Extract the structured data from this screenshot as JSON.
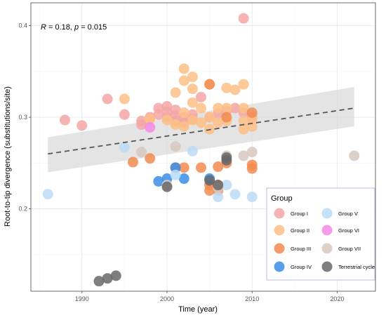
{
  "chart_data": {
    "type": "scatter",
    "xlabel": "Time (year)",
    "ylabel": "Root-to-tip divergence (substitutions/site)",
    "xlim": [
      1984,
      2024.5
    ],
    "ylim": [
      0.11,
      0.425
    ],
    "x_ticks": [
      1990,
      2000,
      2010,
      2020
    ],
    "y_ticks": [
      0.2,
      0.3,
      0.4
    ],
    "x_tick_labels": [
      "1990",
      "2000",
      "2010",
      "2020"
    ],
    "y_tick_labels": [
      "0.2",
      "0.3",
      "0.4"
    ],
    "grid": true,
    "annotation": "R = 0.18, p = 0.015",
    "annotation_parts": {
      "r_symbol": "R",
      "r_value": " = 0.18, ",
      "p_symbol": "p",
      "p_value": " = 0.015"
    },
    "legend": {
      "title": "Group",
      "placement": "bottom-right"
    },
    "regression": {
      "style": "dashed",
      "color": "#555555",
      "line": [
        [
          1986,
          0.26
        ],
        [
          2022,
          0.31
        ]
      ],
      "ci_band": {
        "x": [
          1986,
          2022
        ],
        "lower": [
          0.24,
          0.29
        ],
        "upper": [
          0.278,
          0.333
        ]
      },
      "band_color": "#d9d9d9"
    },
    "series": [
      {
        "name": "Group I",
        "color": "#f4a6a6",
        "points": [
          [
            1988,
            0.297
          ],
          [
            1990,
            0.291
          ],
          [
            1993,
            0.32
          ],
          [
            1995,
            0.303
          ],
          [
            1997,
            0.292
          ],
          [
            1997,
            0.296
          ],
          [
            1998,
            0.3
          ],
          [
            1999,
            0.31
          ],
          [
            1999,
            0.303
          ],
          [
            2000,
            0.312
          ],
          [
            2000,
            0.306
          ],
          [
            2000,
            0.3
          ],
          [
            2001,
            0.308
          ],
          [
            2001,
            0.302
          ],
          [
            2001,
            0.296
          ],
          [
            2002,
            0.3
          ],
          [
            2002,
            0.294
          ],
          [
            2003,
            0.303
          ],
          [
            2003,
            0.298
          ],
          [
            2004,
            0.322
          ],
          [
            2005,
            0.3
          ],
          [
            2006,
            0.304
          ],
          [
            2007,
            0.307
          ],
          [
            2008,
            0.31
          ],
          [
            2009,
            0.408
          ],
          [
            2009,
            0.305
          ],
          [
            2010,
            0.3
          ]
        ]
      },
      {
        "name": "Group II",
        "color": "#fdbf86",
        "points": [
          [
            1995,
            0.32
          ],
          [
            1998,
            0.298
          ],
          [
            2000,
            0.297
          ],
          [
            2001,
            0.327
          ],
          [
            2001,
            0.292
          ],
          [
            2002,
            0.353
          ],
          [
            2002,
            0.34
          ],
          [
            2002,
            0.305
          ],
          [
            2002,
            0.29
          ],
          [
            2003,
            0.344
          ],
          [
            2003,
            0.331
          ],
          [
            2003,
            0.316
          ],
          [
            2003,
            0.297
          ],
          [
            2004,
            0.31
          ],
          [
            2004,
            0.294
          ],
          [
            2005,
            0.336
          ],
          [
            2005,
            0.3
          ],
          [
            2005,
            0.287
          ],
          [
            2006,
            0.31
          ],
          [
            2006,
            0.294
          ],
          [
            2007,
            0.332
          ],
          [
            2007,
            0.31
          ],
          [
            2007,
            0.296
          ],
          [
            2008,
            0.33
          ],
          [
            2009,
            0.336
          ],
          [
            2009,
            0.31
          ],
          [
            2009,
            0.296
          ],
          [
            2009,
            0.287
          ],
          [
            2010,
            0.298
          ],
          [
            2010,
            0.29
          ]
        ]
      },
      {
        "name": "Group III",
        "color": "#f28c50",
        "points": [
          [
            1996,
            0.251
          ],
          [
            1998,
            0.255
          ],
          [
            2001,
            0.245
          ],
          [
            2002,
            0.245
          ],
          [
            2004,
            0.245
          ],
          [
            2005,
            0.336
          ],
          [
            2005,
            0.226
          ],
          [
            2005,
            0.22
          ],
          [
            2006,
            0.246
          ],
          [
            2006,
            0.226
          ],
          [
            2006,
            0.22
          ],
          [
            2007,
            0.25
          ],
          [
            2007,
            0.3
          ],
          [
            2010,
            0.248
          ],
          [
            2010,
            0.244
          ],
          [
            2010,
            0.305
          ]
        ]
      },
      {
        "name": "Group IV",
        "color": "#3a8ee6",
        "points": [
          [
            1999,
            0.23
          ],
          [
            2000,
            0.233
          ],
          [
            2001,
            0.245
          ],
          [
            2002,
            0.233
          ],
          [
            2005,
            0.233
          ]
        ]
      },
      {
        "name": "Group V",
        "color": "#bcdcf6",
        "points": [
          [
            1986,
            0.216
          ],
          [
            1995,
            0.267
          ],
          [
            2001,
            0.237
          ],
          [
            2003,
            0.263
          ],
          [
            2006,
            0.213
          ],
          [
            2007,
            0.226
          ],
          [
            2008,
            0.216
          ],
          [
            2010,
            0.213
          ]
        ]
      },
      {
        "name": "Group VI",
        "color": "#f48ae8",
        "points": [
          [
            1998,
            0.289
          ]
        ]
      },
      {
        "name": "Group VII",
        "color": "#d7c8c0",
        "points": [
          [
            1997,
            0.262
          ],
          [
            2000,
            0.226
          ],
          [
            2001,
            0.268
          ],
          [
            2006,
            0.223
          ],
          [
            2007,
            0.258
          ],
          [
            2009,
            0.258
          ],
          [
            2010,
            0.262
          ],
          [
            2022,
            0.258
          ]
        ]
      },
      {
        "name": "Terrestrial cycle",
        "color": "#676767",
        "points": [
          [
            1992,
            0.121
          ],
          [
            1993,
            0.124
          ],
          [
            1994,
            0.127
          ],
          [
            2000,
            0.224
          ],
          [
            2005,
            0.231
          ],
          [
            2006,
            0.226
          ],
          [
            2007,
            0.256
          ],
          [
            2007,
            0.253
          ]
        ]
      }
    ]
  }
}
